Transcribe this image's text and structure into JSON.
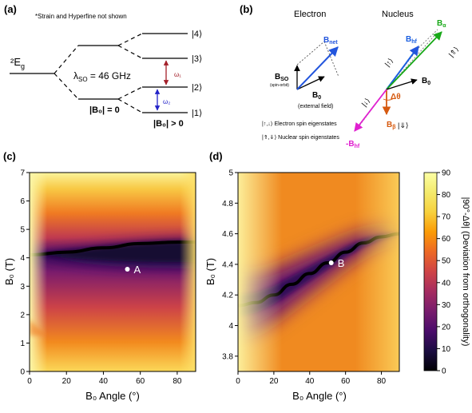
{
  "panels": {
    "a": {
      "label": "(a)",
      "note": "*Strain and Hyperfine not shown",
      "ground": "²E",
      "ground_sub": "g",
      "lambda_prefix": "λ",
      "lambda_sub": "SO",
      "lambda_value": " = 46 GHz",
      "b0_zero": "|B₀| = 0",
      "b0_pos": "|B₀| > 0",
      "levels": [
        "|4⟩",
        "|3⟩",
        "|2⟩",
        "|1⟩"
      ],
      "omega1": "ω₁",
      "omega2": "ω₂",
      "colors": {
        "omega1": "#a3202a",
        "omega2": "#2323c8"
      }
    },
    "b": {
      "label": "(b)",
      "electron_title": "Electron",
      "nucleus_title": "Nucleus",
      "bnet": "B",
      "bnet_sub": "net",
      "bso": "B",
      "bso_sub": "SO",
      "bso_note": "(spin-orbit)",
      "b0": "B",
      "b0_sub": "0",
      "b0_note": "(external field)",
      "bhf": "B",
      "bhf_sub": "hf",
      "balpha": "B",
      "balpha_sub": "α",
      "bbeta": "B",
      "bbeta_sub": "β",
      "neg_bhf": "-B",
      "neg_bhf_sub": "hf",
      "dtheta": "Δθ",
      "ket_up": "|↑⟩",
      "ket_down": "|↓⟩",
      "ket_nuc_up": "|⇑⟩",
      "ket_nuc_down": "|⇓⟩",
      "legend_electron": "|↑,↓⟩ Electron spin eigenstates",
      "legend_nuclear": "|⇑,⇓⟩ Nuclear spin eigenstates",
      "colors": {
        "bnet": "#2255dd",
        "bhf": "#1a5ee0",
        "balpha": "#18a818",
        "bbeta": "#d65a10",
        "neg_bhf": "#e020d0"
      }
    },
    "c": {
      "label": "(c)",
      "marker": "A",
      "xlabel": "B₀ Angle (°)",
      "ylabel": "B₀ (T)",
      "x_ticks": [
        "0",
        "20",
        "40",
        "60",
        "80"
      ],
      "y_ticks": [
        "0",
        "1",
        "2",
        "3",
        "4",
        "5",
        "6",
        "7"
      ]
    },
    "d": {
      "label": "(d)",
      "marker": "B",
      "xlabel": "B₀ Angle (°)",
      "ylabel": "B₀ (T)",
      "x_ticks": [
        "0",
        "20",
        "40",
        "60",
        "80"
      ],
      "y_ticks": [
        "3.8",
        "4",
        "4.2",
        "4.4",
        "4.6",
        "4.8",
        "5"
      ]
    },
    "colorbar": {
      "label": "|90°-Δθ| (Deviation from orthogonality)",
      "ticks": [
        "0",
        "10",
        "20",
        "30",
        "40",
        "50",
        "60",
        "70",
        "80",
        "90"
      ]
    }
  },
  "chart_data": [
    {
      "type": "heatmap",
      "panel": "c",
      "xlabel": "B₀ Angle (°)",
      "ylabel": "B₀ (T)",
      "xlim": [
        0,
        90
      ],
      "ylim": [
        0,
        7
      ],
      "colormap": "inferno",
      "zlim": [
        0,
        90
      ],
      "zero_deviation_curve": {
        "x": [
          0,
          20,
          40,
          60,
          80,
          90
        ],
        "y": [
          4.1,
          4.2,
          4.35,
          4.5,
          4.55,
          4.55
        ]
      },
      "point": {
        "name": "A",
        "x": 53,
        "y": 3.6
      }
    },
    {
      "type": "heatmap",
      "panel": "d",
      "xlabel": "B₀ Angle (°)",
      "ylabel": "B₀ (T)",
      "xlim": [
        0,
        90
      ],
      "ylim": [
        3.7,
        5
      ],
      "colormap": "inferno",
      "zlim": [
        0,
        90
      ],
      "zero_deviation_curve": {
        "x": [
          0,
          10,
          20,
          30,
          40,
          50,
          60,
          70,
          80,
          90
        ],
        "y": [
          4.13,
          4.15,
          4.2,
          4.27,
          4.34,
          4.41,
          4.48,
          4.54,
          4.58,
          4.6
        ]
      },
      "point": {
        "name": "B",
        "x": 52,
        "y": 4.41
      }
    }
  ]
}
